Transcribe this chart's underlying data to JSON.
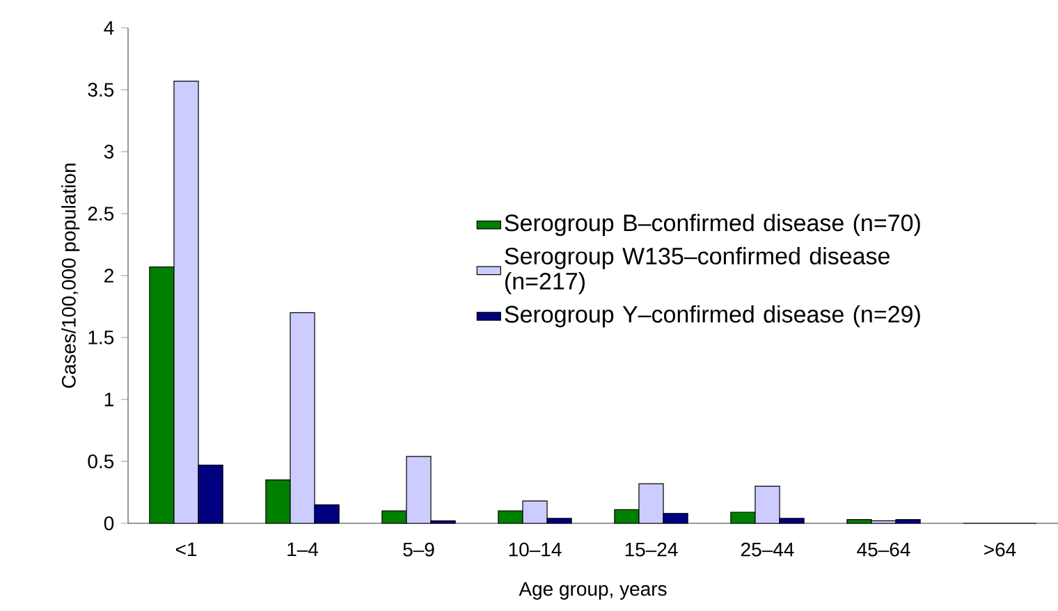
{
  "chart_data": {
    "type": "bar",
    "xlabel": "Age group, years",
    "ylabel": "Cases/100,000 population",
    "categories": [
      "<1",
      "1–4",
      "5–9",
      "10–14",
      "15–24",
      "25–44",
      "45–64",
      ">64"
    ],
    "series": [
      {
        "name": "Serogroup B–confirmed disease (n=70)",
        "color": "#008000",
        "values": [
          2.07,
          0.35,
          0.1,
          0.1,
          0.11,
          0.09,
          0.03,
          0
        ]
      },
      {
        "name": "Serogroup W135–confirmed disease (n=217)",
        "color": "#ccccff",
        "values": [
          3.57,
          1.7,
          0.54,
          0.18,
          0.32,
          0.3,
          0.02,
          0
        ]
      },
      {
        "name": "Serogroup Y–confirmed disease (n=29)",
        "color": "#000080",
        "values": [
          0.47,
          0.15,
          0.02,
          0.04,
          0.08,
          0.04,
          0.03,
          0
        ]
      }
    ],
    "ylim": [
      0,
      4
    ],
    "yticks": [
      0,
      0.5,
      1,
      1.5,
      2,
      2.5,
      3,
      3.5,
      4
    ],
    "grid": false,
    "legend": "right"
  }
}
